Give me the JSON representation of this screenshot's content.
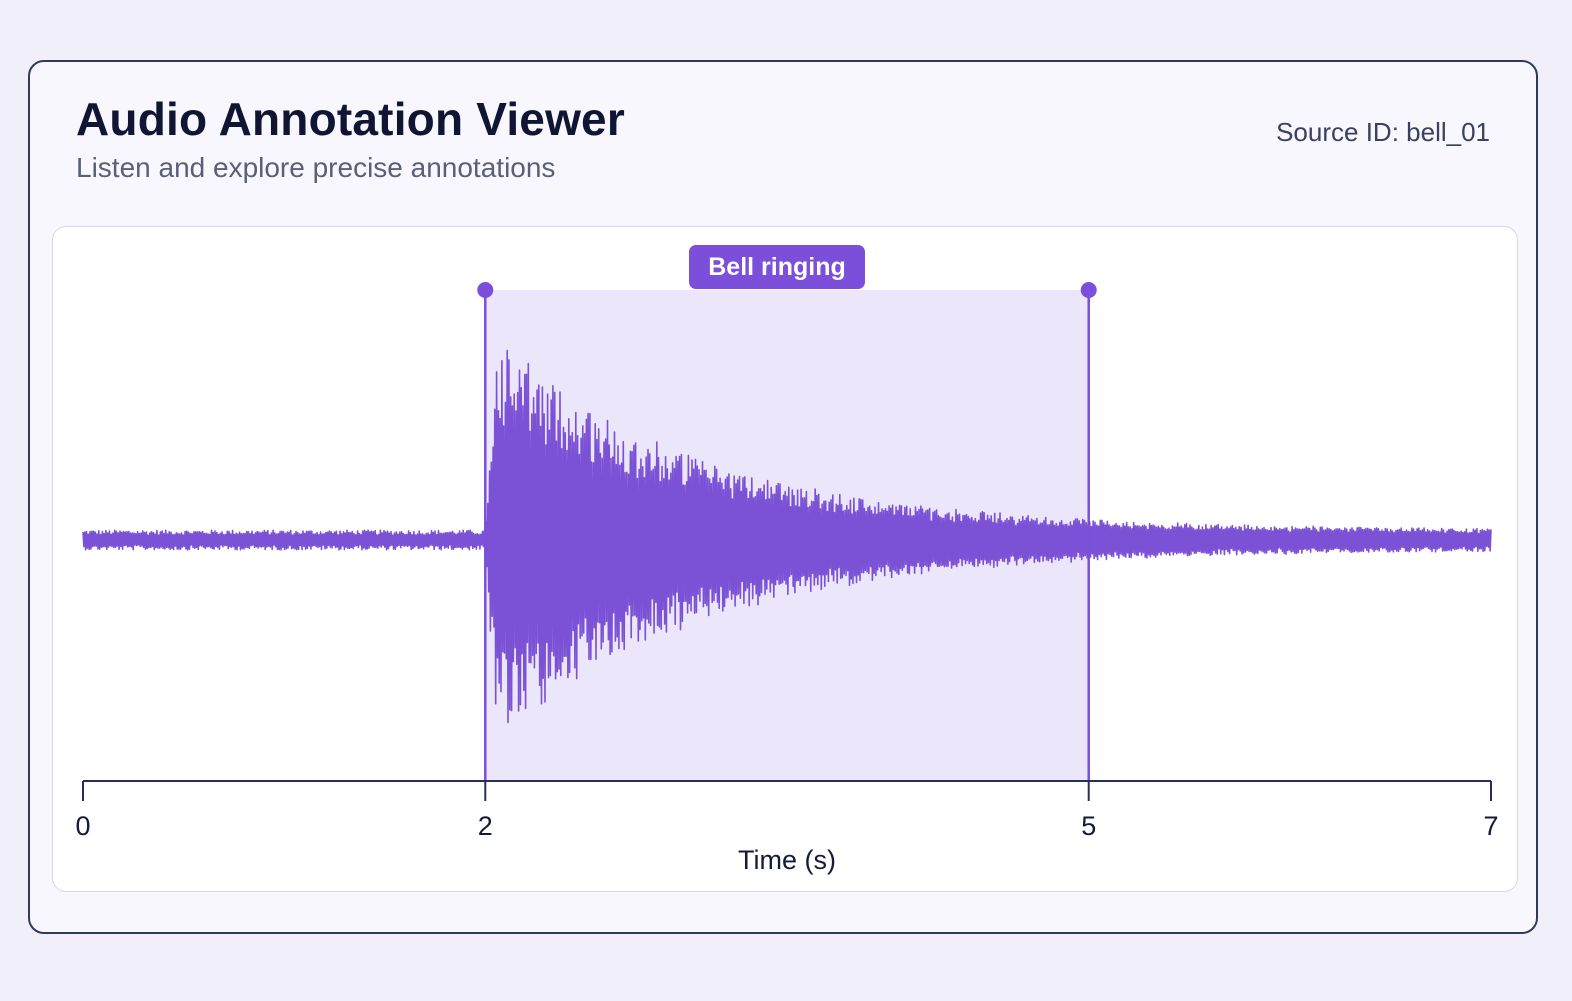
{
  "header": {
    "title": "Audio Annotation Viewer",
    "subtitle": "Listen and explore precise annotations",
    "source_id": "Source ID: bell_01"
  },
  "colors": {
    "accent": "#7b4fd9",
    "waveform": "#7b52d6",
    "segment_fill": "#ece6fb",
    "axis": "#2a2f55"
  },
  "chart_data": {
    "type": "line",
    "xlabel": "Time (s)",
    "xlim": [
      0,
      7
    ],
    "x_ticks": [
      0,
      2,
      5,
      7
    ],
    "annotations": [
      {
        "label": "Bell ringing",
        "start": 2,
        "end": 5
      }
    ],
    "waveform": {
      "noise_amplitude": 0.04,
      "onset": 2,
      "peak_amplitude": 1.0,
      "decay_end": 5
    }
  }
}
